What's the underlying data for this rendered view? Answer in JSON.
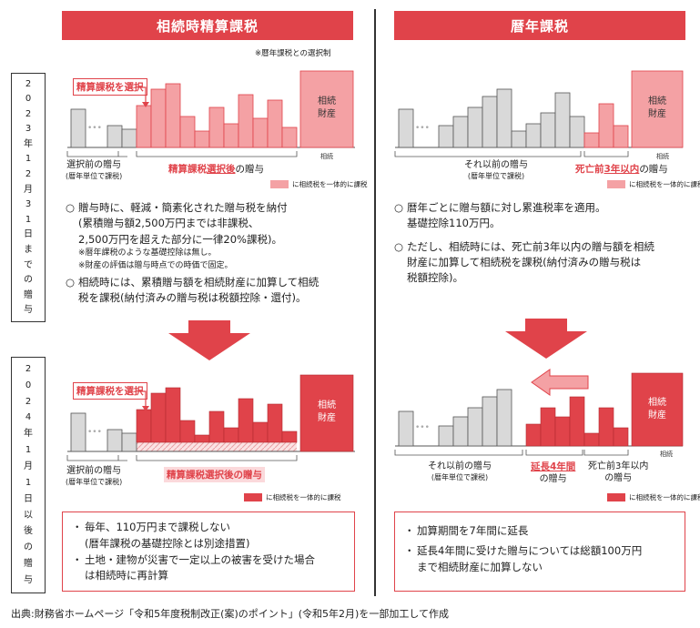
{
  "headers": {
    "left": "相続時精算課税",
    "right": "暦年課税"
  },
  "note_top": "※暦年課税との選択制",
  "period_2023": "2023年12月31日までの贈与",
  "period_2024": "2024年1月1日以後の贈与",
  "common": {
    "selection_label": "精算課税を選択",
    "inheritance_estate": [
      "相続",
      "財産"
    ],
    "inheritance_axis": "相続",
    "dots": "•••",
    "legend": "に相続税を一体的に課税"
  },
  "top_left": {
    "cap_before": "選択前の贈与",
    "cap_before_sub": "(暦年単位で課税)",
    "cap_after_pre": "精算課税",
    "cap_after_em": "選択後",
    "cap_after_post": "の贈与",
    "bullets": [
      {
        "mark": "○",
        "text": "贈与時に、軽減・簡素化された贈与税を納付"
      },
      {
        "mark": "",
        "text": "(累積贈与額2,500万円までは非課税、"
      },
      {
        "mark": "",
        "text": "2,500万円を超えた部分に一律20%課税)。"
      }
    ],
    "subnotes": [
      "※暦年課税のような基礎控除は無し。",
      "※財産の評価は贈与時点での時価で固定。"
    ],
    "bullet2": [
      "相続時には、累積贈与額を相続財産に加算して相続",
      "税を課税(納付済みの贈与税は税額控除・還付)。"
    ],
    "bullet2_mark": "○"
  },
  "top_right": {
    "cap_before": "それ以前の贈与",
    "cap_before_sub": "(暦年単位で課税)",
    "cap_three_pre": "死亡前",
    "cap_three_em": "3年以内",
    "cap_three_post": "の贈与",
    "bullet1": [
      "暦年ごとに贈与額に対し累進税率を適用。",
      "基礎控除110万円。"
    ],
    "bullet2": [
      "ただし、相続時には、死亡前3年以内の贈与額を相続",
      "財産に加算して相続税を課税(納付済みの贈与税は",
      "税額控除)。"
    ],
    "mark": "○"
  },
  "bottom_left": {
    "cap_before": "選択前の贈与",
    "cap_before_sub": "(暦年単位で課税)",
    "cap_after": "精算課税選択後の贈与",
    "box": [
      {
        "mark": "・",
        "text": "毎年、110万円まで課税しない"
      },
      {
        "mark": "",
        "text": "(暦年課税の基礎控除とは別途措置)"
      },
      {
        "mark": "・",
        "text": "土地・建物が災害で一定以上の被害を受けた場合"
      },
      {
        "mark": "",
        "text": "は相続時に再計算"
      }
    ]
  },
  "bottom_right": {
    "cap_before": "それ以前の贈与",
    "cap_before_sub": "(暦年単位で課税)",
    "cap_ext": "延長4年間",
    "cap_ext_post": "の贈与",
    "cap_three": "死亡前3年以内",
    "cap_three_post": "の贈与",
    "box": [
      {
        "mark": "・",
        "text": "加算期間を7年間に延長"
      },
      {
        "mark": "・",
        "text": "延長4年間に受けた贈与については総額100万円"
      },
      {
        "mark": "",
        "text": "まで相続財産に加算しない"
      }
    ]
  },
  "source": "出典:財務省ホームページ「令和5年度税制改正(案)のポイント」(令和5年2月)を一部加工して作成",
  "colors": {
    "red": "#e0434a",
    "pink": "#f4a1a4",
    "gray": "#d9d9d9",
    "stripe": "#f6c9cb"
  }
}
